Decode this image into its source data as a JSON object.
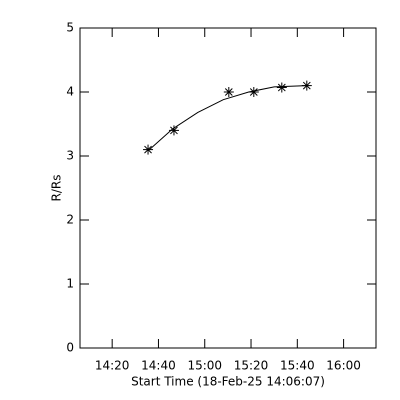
{
  "chart_data": {
    "type": "scatter",
    "xlabel": "Start Time (18-Feb-25 14:06:07)",
    "ylabel": "R/Rs",
    "xlim": [
      846.1,
      974
    ],
    "ylim": [
      0,
      5
    ],
    "xticks": [
      {
        "value": 860,
        "label": "14:20"
      },
      {
        "value": 880,
        "label": "14:40"
      },
      {
        "value": 900,
        "label": "15:00"
      },
      {
        "value": 920,
        "label": "15:20"
      },
      {
        "value": 940,
        "label": "15:40"
      },
      {
        "value": 960,
        "label": "16:00"
      }
    ],
    "yticks": [
      0,
      1,
      2,
      3,
      4,
      5
    ],
    "series": [
      {
        "mode": "markers",
        "color": "#000000",
        "x": [
          875.5,
          886.7,
          910.4,
          921.2,
          933.3,
          944.1
        ],
        "values": [
          3.1,
          3.4,
          4.0,
          4.0,
          4.07,
          4.1
        ]
      },
      {
        "mode": "line",
        "color": "#000000",
        "x": [
          875.5,
          886,
          897,
          908,
          919,
          930,
          944.1
        ],
        "values": [
          3.08,
          3.42,
          3.68,
          3.88,
          4.0,
          4.08,
          4.1
        ]
      }
    ]
  }
}
